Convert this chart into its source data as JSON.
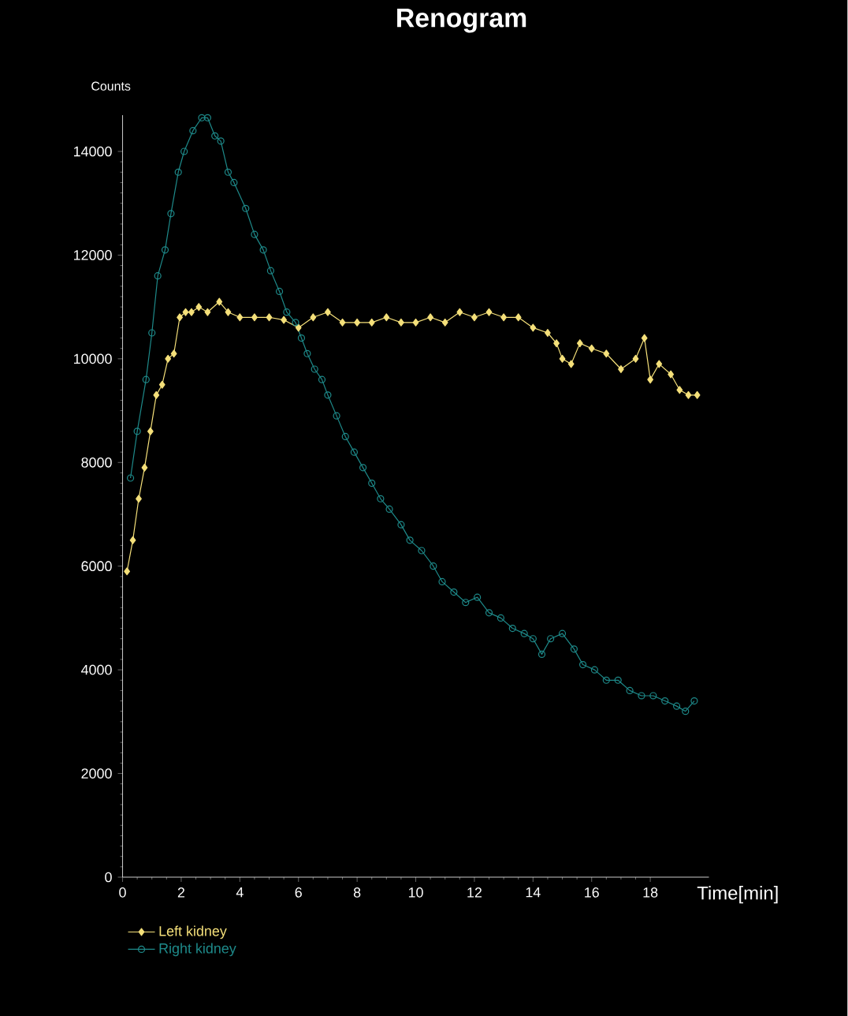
{
  "chart_data": {
    "type": "line",
    "title": "Renogram",
    "xlabel": "Time[min]",
    "ylabel": "Counts",
    "xlim": [
      0,
      20
    ],
    "xticks": [
      0,
      2,
      4,
      6,
      8,
      10,
      12,
      14,
      16,
      18
    ],
    "ylim": [
      0,
      14700
    ],
    "yticks": [
      0,
      2000,
      4000,
      6000,
      8000,
      10000,
      12000,
      14000
    ],
    "grid": false,
    "legend": "bottom left",
    "series": [
      {
        "name": "Left kidney",
        "color": "#f5e07a",
        "marker": "diamond",
        "x": [
          0.15,
          0.35,
          0.55,
          0.75,
          0.95,
          1.15,
          1.35,
          1.55,
          1.75,
          1.95,
          2.15,
          2.35,
          2.6,
          2.9,
          3.3,
          3.6,
          4.0,
          4.5,
          5.0,
          5.5,
          6.0,
          6.5,
          7.0,
          7.5,
          8.0,
          8.5,
          9.0,
          9.5,
          10.0,
          10.5,
          11.0,
          11.5,
          12.0,
          12.5,
          13.0,
          13.5,
          14.0,
          14.5,
          14.8,
          15.0,
          15.3,
          15.6,
          16.0,
          16.5,
          17.0,
          17.5,
          17.8,
          18.0,
          18.3,
          18.7,
          19.0,
          19.3,
          19.6
        ],
        "values": [
          5900,
          6500,
          7300,
          7900,
          8600,
          9300,
          9500,
          10000,
          10100,
          10800,
          10900,
          10900,
          11000,
          10900,
          11100,
          10900,
          10800,
          10800,
          10800,
          10750,
          10600,
          10800,
          10900,
          10700,
          10700,
          10700,
          10800,
          10700,
          10700,
          10800,
          10700,
          10900,
          10800,
          10900,
          10800,
          10800,
          10600,
          10500,
          10300,
          10000,
          9900,
          10300,
          10200,
          10100,
          9800,
          10000,
          10400,
          9600,
          9900,
          9700,
          9400,
          9300,
          9300
        ]
      },
      {
        "name": "Right kidney",
        "color": "#1e8a8a",
        "marker": "circle",
        "x": [
          0.27,
          0.5,
          0.8,
          1.0,
          1.2,
          1.45,
          1.65,
          1.9,
          2.1,
          2.4,
          2.7,
          2.9,
          3.15,
          3.35,
          3.6,
          3.8,
          4.2,
          4.5,
          4.8,
          5.05,
          5.35,
          5.6,
          5.9,
          6.1,
          6.3,
          6.55,
          6.8,
          7.0,
          7.3,
          7.6,
          7.9,
          8.2,
          8.5,
          8.8,
          9.1,
          9.5,
          9.8,
          10.2,
          10.6,
          10.9,
          11.3,
          11.7,
          12.1,
          12.5,
          12.9,
          13.3,
          13.7,
          14.0,
          14.3,
          14.6,
          15.0,
          15.4,
          15.7,
          16.1,
          16.5,
          16.9,
          17.3,
          17.7,
          18.1,
          18.5,
          18.9,
          19.2,
          19.5
        ],
        "values": [
          7700,
          8600,
          9600,
          10500,
          11600,
          12100,
          12800,
          13600,
          14000,
          14400,
          14650,
          14650,
          14300,
          14200,
          13600,
          13400,
          12900,
          12400,
          12100,
          11700,
          11300,
          10900,
          10700,
          10400,
          10100,
          9800,
          9600,
          9300,
          8900,
          8500,
          8200,
          7900,
          7600,
          7300,
          7100,
          6800,
          6500,
          6300,
          6000,
          5700,
          5500,
          5300,
          5400,
          5100,
          5000,
          4800,
          4700,
          4600,
          4300,
          4600,
          4700,
          4400,
          4100,
          4000,
          3800,
          3800,
          3600,
          3500,
          3500,
          3400,
          3300,
          3200,
          3400
        ]
      }
    ]
  }
}
